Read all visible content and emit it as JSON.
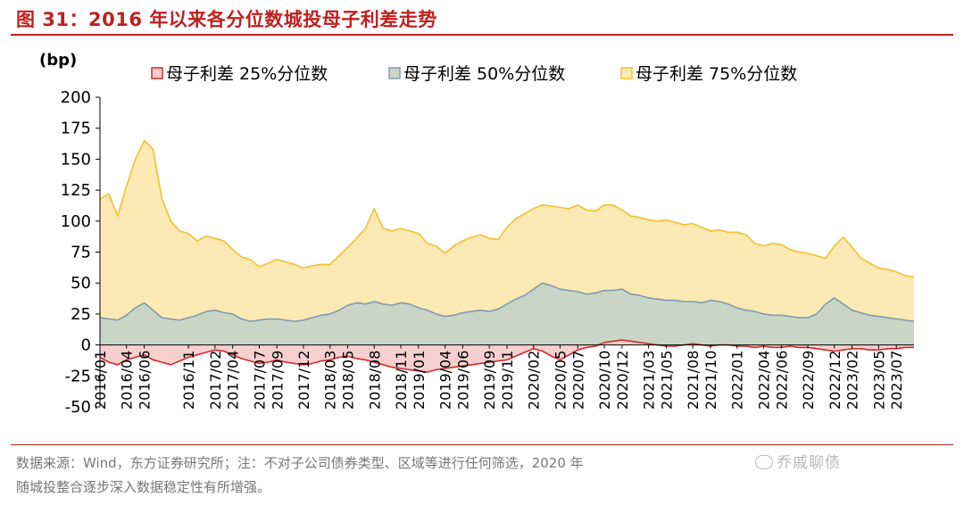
{
  "title": "图 31：2016 年以来各分位数城投母子利差走势",
  "source_line1": "数据来源：Wind，东方证券研究所；注：不对子公司债券类型、区域等进行任何筛选，2020 年",
  "source_line2": "随城投整合逐步深入数据稳定性有所增强。",
  "watermark": "乔戚聊债",
  "colors": {
    "p25_fill": "#f6cccc",
    "p25_line": "#d02b2b",
    "p50_fill": "#c9d6c6",
    "p50_line": "#7f9bb0",
    "p75_fill": "#fde9b3",
    "p75_line": "#f3c030",
    "title": "#c0201f"
  },
  "chart_data": {
    "type": "area",
    "ylabel": "(bp)",
    "ylim": [
      -50,
      200
    ],
    "yticks": [
      -50,
      -25,
      0,
      25,
      50,
      75,
      100,
      125,
      150,
      175,
      200
    ],
    "xrange": [
      "2016/01",
      "2023/09"
    ],
    "xticks": [
      "2016/01",
      "2016/04",
      "2016/06",
      "2016/11",
      "2017/02",
      "2017/04",
      "2017/07",
      "2017/09",
      "2017/12",
      "2018/03",
      "2018/05",
      "2018/08",
      "2018/11",
      "2019/01",
      "2019/04",
      "2019/06",
      "2019/09",
      "2019/11",
      "2020/02",
      "2020/05",
      "2020/07",
      "2020/10",
      "2020/12",
      "2021/03",
      "2021/05",
      "2021/08",
      "2021/10",
      "2022/01",
      "2022/04",
      "2022/06",
      "2022/09",
      "2022/12",
      "2023/02",
      "2023/05",
      "2023/07"
    ],
    "grid": false,
    "legend_position": "top",
    "series": [
      {
        "name": "母子利差 75%分位数",
        "x": [
          "2016/01",
          "2016/02",
          "2016/03",
          "2016/04",
          "2016/05",
          "2016/06",
          "2016/07",
          "2016/08",
          "2016/09",
          "2016/10",
          "2016/11",
          "2016/12",
          "2017/01",
          "2017/02",
          "2017/03",
          "2017/04",
          "2017/05",
          "2017/06",
          "2017/07",
          "2017/08",
          "2017/09",
          "2017/10",
          "2017/11",
          "2017/12",
          "2018/01",
          "2018/02",
          "2018/03",
          "2018/04",
          "2018/05",
          "2018/06",
          "2018/07",
          "2018/08",
          "2018/09",
          "2018/10",
          "2018/11",
          "2018/12",
          "2019/01",
          "2019/02",
          "2019/03",
          "2019/04",
          "2019/05",
          "2019/06",
          "2019/07",
          "2019/08",
          "2019/09",
          "2019/10",
          "2019/11",
          "2019/12",
          "2020/01",
          "2020/02",
          "2020/03",
          "2020/04",
          "2020/05",
          "2020/06",
          "2020/07",
          "2020/08",
          "2020/09",
          "2020/10",
          "2020/11",
          "2020/12",
          "2021/01",
          "2021/02",
          "2021/03",
          "2021/04",
          "2021/05",
          "2021/06",
          "2021/07",
          "2021/08",
          "2021/09",
          "2021/10",
          "2021/11",
          "2021/12",
          "2022/01",
          "2022/02",
          "2022/03",
          "2022/04",
          "2022/05",
          "2022/06",
          "2022/07",
          "2022/08",
          "2022/09",
          "2022/10",
          "2022/11",
          "2022/12",
          "2023/01",
          "2023/02",
          "2023/03",
          "2023/04",
          "2023/05",
          "2023/06",
          "2023/07",
          "2023/08",
          "2023/09"
        ],
        "values": [
          118,
          122,
          104,
          128,
          150,
          165,
          158,
          118,
          100,
          92,
          90,
          84,
          88,
          86,
          84,
          77,
          71,
          69,
          63,
          66,
          69,
          67,
          65,
          62,
          64,
          65,
          65,
          72,
          79,
          86,
          94,
          110,
          94,
          92,
          94,
          92,
          90,
          82,
          80,
          74,
          80,
          84,
          87,
          89,
          86,
          85,
          95,
          102,
          106,
          110,
          113,
          112,
          111,
          110,
          113,
          109,
          108,
          113,
          113,
          109,
          104,
          103,
          101,
          100,
          101,
          99,
          97,
          98,
          95,
          92,
          93,
          91,
          91,
          89,
          82,
          80,
          82,
          81,
          77,
          75,
          74,
          72,
          70,
          80,
          87,
          79,
          70,
          66,
          62,
          61,
          59,
          56,
          55
        ]
      },
      {
        "name": "母子利差 50%分位数",
        "x": [
          "2016/01",
          "2016/02",
          "2016/03",
          "2016/04",
          "2016/05",
          "2016/06",
          "2016/07",
          "2016/08",
          "2016/09",
          "2016/10",
          "2016/11",
          "2016/12",
          "2017/01",
          "2017/02",
          "2017/03",
          "2017/04",
          "2017/05",
          "2017/06",
          "2017/07",
          "2017/08",
          "2017/09",
          "2017/10",
          "2017/11",
          "2017/12",
          "2018/01",
          "2018/02",
          "2018/03",
          "2018/04",
          "2018/05",
          "2018/06",
          "2018/07",
          "2018/08",
          "2018/09",
          "2018/10",
          "2018/11",
          "2018/12",
          "2019/01",
          "2019/02",
          "2019/03",
          "2019/04",
          "2019/05",
          "2019/06",
          "2019/07",
          "2019/08",
          "2019/09",
          "2019/10",
          "2019/11",
          "2019/12",
          "2020/01",
          "2020/02",
          "2020/03",
          "2020/04",
          "2020/05",
          "2020/06",
          "2020/07",
          "2020/08",
          "2020/09",
          "2020/10",
          "2020/11",
          "2020/12",
          "2021/01",
          "2021/02",
          "2021/03",
          "2021/04",
          "2021/05",
          "2021/06",
          "2021/07",
          "2021/08",
          "2021/09",
          "2021/10",
          "2021/11",
          "2021/12",
          "2022/01",
          "2022/02",
          "2022/03",
          "2022/04",
          "2022/05",
          "2022/06",
          "2022/07",
          "2022/08",
          "2022/09",
          "2022/10",
          "2022/11",
          "2022/12",
          "2023/01",
          "2023/02",
          "2023/03",
          "2023/04",
          "2023/05",
          "2023/06",
          "2023/07",
          "2023/08",
          "2023/09"
        ],
        "values": [
          22,
          21,
          20,
          24,
          30,
          34,
          28,
          22,
          21,
          20,
          22,
          24,
          27,
          28,
          26,
          25,
          21,
          19,
          20,
          21,
          21,
          20,
          19,
          20,
          22,
          24,
          25,
          28,
          32,
          34,
          33,
          35,
          33,
          32,
          34,
          33,
          30,
          28,
          25,
          23,
          24,
          26,
          27,
          28,
          27,
          29,
          33,
          37,
          40,
          45,
          50,
          48,
          45,
          44,
          43,
          41,
          42,
          44,
          44,
          45,
          41,
          40,
          38,
          37,
          36,
          36,
          35,
          35,
          34,
          36,
          35,
          33,
          30,
          28,
          27,
          25,
          24,
          24,
          23,
          22,
          22,
          25,
          33,
          38,
          33,
          28,
          26,
          24,
          23,
          22,
          21,
          20,
          19
        ]
      },
      {
        "name": "母子利差 25%分位数",
        "x": [
          "2016/01",
          "2016/02",
          "2016/03",
          "2016/04",
          "2016/05",
          "2016/06",
          "2016/07",
          "2016/08",
          "2016/09",
          "2016/10",
          "2016/11",
          "2016/12",
          "2017/01",
          "2017/02",
          "2017/03",
          "2017/04",
          "2017/05",
          "2017/06",
          "2017/07",
          "2017/08",
          "2017/09",
          "2017/10",
          "2017/11",
          "2017/12",
          "2018/01",
          "2018/02",
          "2018/03",
          "2018/04",
          "2018/05",
          "2018/06",
          "2018/07",
          "2018/08",
          "2018/09",
          "2018/10",
          "2018/11",
          "2018/12",
          "2019/01",
          "2019/02",
          "2019/03",
          "2019/04",
          "2019/05",
          "2019/06",
          "2019/07",
          "2019/08",
          "2019/09",
          "2019/10",
          "2019/11",
          "2019/12",
          "2020/01",
          "2020/02",
          "2020/03",
          "2020/04",
          "2020/05",
          "2020/06",
          "2020/07",
          "2020/08",
          "2020/09",
          "2020/10",
          "2020/11",
          "2020/12",
          "2021/01",
          "2021/02",
          "2021/03",
          "2021/04",
          "2021/05",
          "2021/06",
          "2021/07",
          "2021/08",
          "2021/09",
          "2021/10",
          "2021/11",
          "2021/12",
          "2022/01",
          "2022/02",
          "2022/03",
          "2022/04",
          "2022/05",
          "2022/06",
          "2022/07",
          "2022/08",
          "2022/09",
          "2022/10",
          "2022/11",
          "2022/12",
          "2023/01",
          "2023/02",
          "2023/03",
          "2023/04",
          "2023/05",
          "2023/06",
          "2023/07",
          "2023/08",
          "2023/09"
        ],
        "values": [
          -10,
          -14,
          -16,
          -12,
          -10,
          -8,
          -12,
          -14,
          -16,
          -13,
          -10,
          -8,
          -6,
          -4,
          -5,
          -8,
          -11,
          -13,
          -15,
          -14,
          -12,
          -14,
          -15,
          -16,
          -15,
          -13,
          -12,
          -10,
          -9,
          -11,
          -12,
          -14,
          -16,
          -18,
          -19,
          -20,
          -21,
          -22,
          -20,
          -19,
          -18,
          -17,
          -16,
          -15,
          -14,
          -13,
          -12,
          -9,
          -6,
          -3,
          -5,
          -9,
          -12,
          -8,
          -4,
          -2,
          -1,
          2,
          3,
          4,
          3,
          2,
          1,
          0,
          -1,
          -1,
          0,
          1,
          0,
          -1,
          0,
          0,
          -1,
          -1,
          -2,
          -1,
          -2,
          -2,
          -1,
          -2,
          -2,
          -3,
          -4,
          -5,
          -4,
          -3,
          -3,
          -4,
          -4,
          -3,
          -3,
          -2,
          -2
        ]
      }
    ]
  }
}
